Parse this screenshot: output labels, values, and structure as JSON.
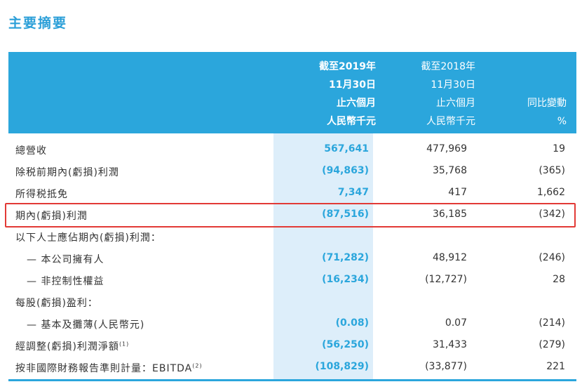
{
  "title": "主要摘要",
  "columns": [
    [
      "截至2019年",
      "11月30日",
      "止六個月",
      "人民幣千元"
    ],
    [
      "截至2018年",
      "11月30日",
      "止六個月",
      "人民幣千元"
    ],
    [
      "同比變動",
      "%"
    ]
  ],
  "rows": [
    {
      "label": "總營收",
      "v1": "567,641",
      "v2": "477,969",
      "v3": "19"
    },
    {
      "label": "除税前期內(虧損)利潤",
      "v1": "(94,863)",
      "v2": "35,768",
      "v3": "(365)"
    },
    {
      "label": "所得税抵免",
      "v1": "7,347",
      "v2": "417",
      "v3": "1,662"
    },
    {
      "label": "期內(虧損)利潤",
      "v1": "(87,516)",
      "v2": "36,185",
      "v3": "(342)"
    },
    {
      "label": "以下人士應佔期內(虧損)利潤：",
      "v1": "",
      "v2": "",
      "v3": ""
    },
    {
      "label": "— 本公司擁有人",
      "v1": "(71,282)",
      "v2": "48,912",
      "v3": "(246)"
    },
    {
      "label": "— 非控制性權益",
      "v1": "(16,234)",
      "v2": "(12,727)",
      "v3": "28"
    },
    {
      "label": "每股(虧損)盈利：",
      "v1": "",
      "v2": "",
      "v3": ""
    },
    {
      "label": "— 基本及攤薄(人民幣元)",
      "v1": "(0.08)",
      "v2": "0.07",
      "v3": "(214)"
    },
    {
      "label": "經調整(虧損)利潤淨額",
      "sup": "(1)",
      "v1": "(56,250)",
      "v2": "31,433",
      "v3": "(279)"
    },
    {
      "label": "按非國際財務報告準則計量：EBITDA",
      "sup": "(2)",
      "v1": "(108,829)",
      "v2": "(33,877)",
      "v3": "221"
    }
  ]
}
